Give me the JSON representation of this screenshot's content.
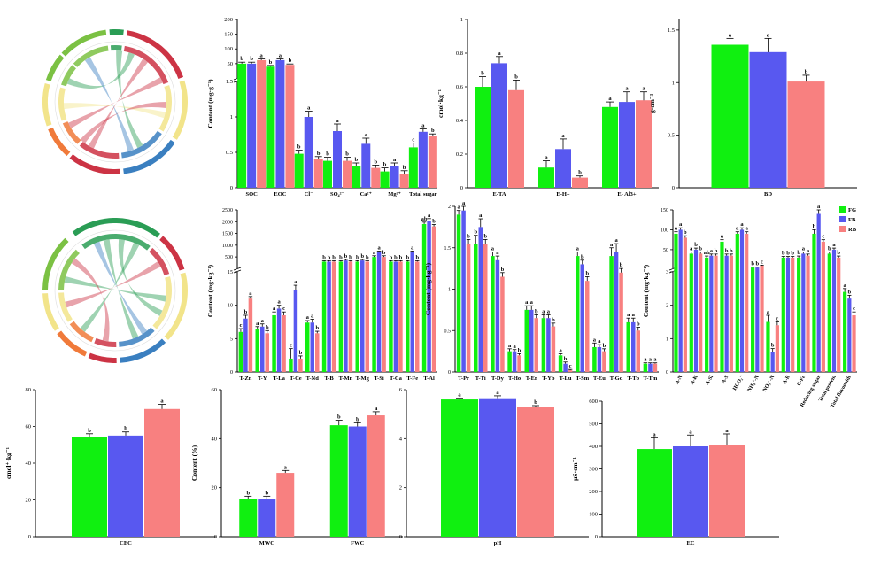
{
  "colors": {
    "FG": "#10f010",
    "FB": "#5858f0",
    "RB": "#f88080",
    "axis": "#000000",
    "chord_a": "#2a9d55",
    "chord_b": "#cc3344",
    "chord_c": "#3a7fc0",
    "chord_d": "#f2e48a",
    "chord_e": "#f07a3a",
    "chord_f": "#7bc143"
  },
  "legend": [
    "FG",
    "FB",
    "RB"
  ],
  "chord_diagrams": [
    {
      "type": "chord-diagram",
      "labels": []
    },
    {
      "type": "chord-diagram",
      "labels": []
    }
  ],
  "chart_data": [
    {
      "id": "p1",
      "type": "bar",
      "ylabel": "Content (mg·g⁻¹)",
      "categories": [
        "SOC",
        "EOC",
        "Cl⁻",
        "SO₄²⁻",
        "Ca²⁺",
        "Mg²⁺",
        "Total sugar"
      ],
      "segments": [
        {
          "range": [
            0,
            1.5
          ],
          "ticks": [
            0,
            0.5,
            1,
            1.5
          ]
        },
        {
          "range": [
            1.5,
            200
          ],
          "ticks": [
            50,
            100,
            150,
            200
          ]
        }
      ],
      "series": [
        {
          "name": "FG",
          "values": [
            50,
            40,
            0.48,
            0.38,
            0.3,
            0.23,
            0.57
          ],
          "err": [
            5,
            4,
            0.05,
            0.05,
            0.05,
            0.05,
            0.06
          ],
          "letters": [
            "b",
            "b",
            "b",
            "b",
            "b",
            "b",
            "c"
          ]
        },
        {
          "name": "FB",
          "values": [
            50,
            62,
            1.0,
            0.8,
            0.62,
            0.3,
            0.79
          ],
          "err": [
            5,
            4,
            0.08,
            0.1,
            0.08,
            0.05,
            0.04
          ],
          "letters": [
            "b",
            "a",
            "a",
            "a",
            "a",
            "a",
            "a"
          ]
        },
        {
          "name": "RB",
          "values": [
            62,
            46,
            0.4,
            0.38,
            0.28,
            0.2,
            0.73
          ],
          "err": [
            4,
            3,
            0.04,
            0.05,
            0.04,
            0.04,
            0.03
          ],
          "letters": [
            "a",
            "b",
            "b",
            "b",
            "b",
            "b",
            "b"
          ]
        }
      ]
    },
    {
      "id": "p2",
      "type": "bar",
      "ylabel": "cmol·kg⁻¹",
      "categories": [
        "E-TA",
        "E-H+",
        "E- Al3+"
      ],
      "segments": [
        {
          "range": [
            0,
            1.0
          ],
          "ticks": [
            0,
            0.2,
            0.4,
            0.6,
            0.8,
            1.0
          ]
        }
      ],
      "series": [
        {
          "name": "FG",
          "values": [
            0.6,
            0.12,
            0.48
          ],
          "err": [
            0.06,
            0.04,
            0.03
          ],
          "letters": [
            "b",
            "a",
            "a"
          ]
        },
        {
          "name": "FB",
          "values": [
            0.74,
            0.23,
            0.51
          ],
          "err": [
            0.04,
            0.06,
            0.06
          ],
          "letters": [
            "a",
            "a",
            "a"
          ]
        },
        {
          "name": "RB",
          "values": [
            0.58,
            0.06,
            0.52
          ],
          "err": [
            0.06,
            0.01,
            0.05
          ],
          "letters": [
            "b",
            "b",
            "a"
          ]
        }
      ]
    },
    {
      "id": "p3",
      "type": "bar",
      "ylabel": "g·cm⁻³",
      "categories": [
        "BD"
      ],
      "segments": [
        {
          "range": [
            0,
            1.6
          ],
          "ticks": [
            0,
            0.5,
            1.0,
            1.5
          ]
        }
      ],
      "series": [
        {
          "name": "FG",
          "values": [
            1.36
          ],
          "err": [
            0.06
          ],
          "letters": [
            "a"
          ]
        },
        {
          "name": "FB",
          "values": [
            1.29
          ],
          "err": [
            0.13
          ],
          "letters": [
            "a"
          ]
        },
        {
          "name": "RB",
          "values": [
            1.01
          ],
          "err": [
            0.06
          ],
          "letters": [
            "b"
          ]
        }
      ]
    },
    {
      "id": "p4",
      "type": "bar",
      "ylabel": "Content (mg·kg⁻¹)",
      "categories": [
        "T-Zn",
        "T-Y",
        "T-La",
        "T-Ce",
        "T-Nd",
        "T-B",
        "T-Mn",
        "T-Mg",
        "T-Si",
        "T-Ca",
        "T-Fe",
        "T-Al"
      ],
      "segments": [
        {
          "range": [
            0,
            15
          ],
          "ticks": [
            0,
            5,
            10,
            15
          ]
        },
        {
          "range": [
            15,
            2500
          ],
          "ticks": [
            500,
            1000,
            1500,
            2000,
            2500
          ]
        }
      ],
      "series": [
        {
          "name": "FG",
          "values": [
            6,
            6.5,
            8.5,
            2,
            7.4,
            300,
            300,
            300,
            500,
            300,
            300,
            1900
          ],
          "err": [
            0.5,
            0.3,
            0.5,
            1.5,
            0.3,
            40,
            40,
            40,
            50,
            40,
            40,
            80
          ],
          "letters": [
            "c",
            "a",
            "a",
            "c",
            "a",
            "b",
            "b",
            "b",
            "a",
            "b",
            "b",
            "ab"
          ]
        },
        {
          "name": "FB",
          "values": [
            8,
            6.8,
            9.5,
            12.3,
            7.4,
            300,
            350,
            350,
            700,
            300,
            700,
            2050
          ],
          "err": [
            0.5,
            0.4,
            0.5,
            0.7,
            0.5,
            40,
            40,
            40,
            50,
            40,
            50,
            80
          ],
          "letters": [
            "b",
            "a",
            "a",
            "a",
            "a",
            "b",
            "b",
            "b",
            "a",
            "b",
            "a",
            "a"
          ]
        },
        {
          "name": "RB",
          "values": [
            11,
            5.8,
            8.5,
            2,
            5.8,
            300,
            300,
            300,
            500,
            300,
            300,
            1800
          ],
          "err": [
            0.3,
            0.4,
            0.5,
            0.4,
            0.3,
            40,
            40,
            40,
            50,
            40,
            40,
            80
          ],
          "letters": [
            "a",
            "b",
            "c",
            "b",
            "b",
            "b",
            "b",
            "b",
            "b",
            "b",
            "b",
            "b"
          ]
        }
      ]
    },
    {
      "id": "p5",
      "type": "bar",
      "ylabel": "Content (mg·kg⁻¹)",
      "categories": [
        "T-Pr",
        "T-Ti",
        "T-Dy",
        "T-Ho",
        "T-Er",
        "T-Yb",
        "T-Lu",
        "T-Sm",
        "T-Eu",
        "T-Gd",
        "T-Tb",
        "T-Tm"
      ],
      "segments": [
        {
          "range": [
            0,
            2.0
          ],
          "ticks": [
            0,
            0.5,
            1.0,
            1.5,
            2.0
          ]
        }
      ],
      "series": [
        {
          "name": "FG",
          "values": [
            1.9,
            1.55,
            1.4,
            0.25,
            0.75,
            0.65,
            0.2,
            1.4,
            0.3,
            1.4,
            0.6,
            0.1
          ],
          "err": [
            0.05,
            0.1,
            0.05,
            0.03,
            0.05,
            0.04,
            0.02,
            0.05,
            0.05,
            0.1,
            0.05,
            0.01
          ],
          "letters": [
            "a",
            "b",
            "a",
            "a",
            "a",
            "a",
            "a",
            "a",
            "a",
            "a",
            "a",
            "a"
          ]
        },
        {
          "name": "FB",
          "values": [
            1.95,
            1.75,
            1.35,
            0.25,
            0.75,
            0.65,
            0.1,
            1.3,
            0.3,
            1.45,
            0.6,
            0.1
          ],
          "err": [
            0.05,
            0.1,
            0.05,
            0.02,
            0.05,
            0.04,
            0.02,
            0.05,
            0.03,
            0.1,
            0.05,
            0.01
          ],
          "letters": [
            "a",
            "a",
            "a",
            "a",
            "a",
            "a",
            "b",
            "b",
            "a",
            "a",
            "a",
            "a"
          ]
        },
        {
          "name": "RB",
          "values": [
            1.55,
            1.55,
            1.15,
            0.2,
            0.65,
            0.55,
            0.02,
            1.1,
            0.25,
            1.2,
            0.5,
            0.1
          ],
          "err": [
            0.05,
            0.05,
            0.05,
            0.02,
            0.04,
            0.04,
            0.01,
            0.05,
            0.03,
            0.05,
            0.04,
            0.01
          ],
          "letters": [
            "b",
            "b",
            "b",
            "b",
            "b",
            "b",
            "c",
            "b",
            "b",
            "b",
            "b",
            "a"
          ]
        }
      ]
    },
    {
      "id": "p6",
      "type": "bar",
      "ylabel": "Content (mg·kg⁻¹)",
      "categories": [
        "A-N",
        "A-K",
        "A-Si",
        "A-S",
        "HCO₃⁻",
        "NH₄⁺-N",
        "NO₃⁻-N",
        "A-B",
        "C-Fe",
        "Reducing sugar",
        "Total protein",
        "Total flavonoids"
      ],
      "segments": [
        {
          "range": [
            0,
            3
          ],
          "ticks": [
            0,
            1,
            2,
            3
          ]
        },
        {
          "range": [
            3,
            150
          ],
          "ticks": [
            50,
            100,
            150
          ]
        }
      ],
      "series": [
        {
          "name": "FG",
          "values": [
            90,
            40,
            30,
            70,
            90,
            5,
            1.5,
            30,
            30,
            90,
            40,
            2.4
          ],
          "err": [
            5,
            4,
            4,
            5,
            5,
            1,
            0.2,
            3,
            4,
            10,
            4,
            0.1
          ],
          "letters": [
            "a",
            "a",
            "ab",
            "a",
            "a",
            "b",
            "a",
            "b",
            "b",
            "b",
            "b",
            "a"
          ]
        },
        {
          "name": "FB",
          "values": [
            100,
            50,
            35,
            35,
            100,
            5,
            0.6,
            30,
            40,
            140,
            50,
            2.2
          ],
          "err": [
            5,
            4,
            4,
            4,
            5,
            1,
            0.1,
            3,
            4,
            10,
            4,
            0.1
          ],
          "letters": [
            "a",
            "b",
            "a",
            "b",
            "a",
            "b",
            "b",
            "b",
            "a",
            "a",
            "a",
            "b"
          ]
        },
        {
          "name": "RB",
          "values": [
            80,
            40,
            35,
            35,
            90,
            10,
            1.4,
            30,
            35,
            70,
            30,
            1.7
          ],
          "err": [
            5,
            4,
            4,
            4,
            5,
            1,
            0.1,
            3,
            4,
            5,
            4,
            0.1
          ],
          "letters": [
            "b",
            "b",
            "b",
            "b",
            "a",
            "c",
            "c",
            "b",
            "a",
            "c",
            "b",
            "c"
          ]
        }
      ]
    },
    {
      "id": "p7",
      "type": "bar",
      "ylabel": "cmol⁺·kg⁻¹",
      "categories": [
        "CEC"
      ],
      "segments": [
        {
          "range": [
            0,
            80
          ],
          "ticks": [
            0,
            20,
            40,
            60,
            80
          ]
        }
      ],
      "series": [
        {
          "name": "FG",
          "values": [
            54
          ],
          "err": [
            2
          ],
          "letters": [
            "b"
          ]
        },
        {
          "name": "FB",
          "values": [
            55
          ],
          "err": [
            2
          ],
          "letters": [
            "b"
          ]
        },
        {
          "name": "RB",
          "values": [
            69.5
          ],
          "err": [
            2.5
          ],
          "letters": [
            "a"
          ]
        }
      ]
    },
    {
      "id": "p8",
      "type": "bar",
      "ylabel": "Content (%)",
      "categories": [
        "MWC",
        "FWC"
      ],
      "segments": [
        {
          "range": [
            0,
            60
          ],
          "ticks": [
            0,
            20,
            40,
            60
          ]
        }
      ],
      "series": [
        {
          "name": "FG",
          "values": [
            15.5,
            45.5
          ],
          "err": [
            1,
            2
          ],
          "letters": [
            "b",
            "b"
          ]
        },
        {
          "name": "FB",
          "values": [
            15.5,
            45
          ],
          "err": [
            1,
            1.5
          ],
          "letters": [
            "b",
            "b"
          ]
        },
        {
          "name": "RB",
          "values": [
            26,
            49.5
          ],
          "err": [
            1,
            1.5
          ],
          "letters": [
            "a",
            "a"
          ]
        }
      ]
    },
    {
      "id": "p9",
      "type": "bar",
      "ylabel": "",
      "categories": [
        "pH"
      ],
      "segments": [
        {
          "range": [
            0,
            6
          ],
          "ticks": [
            0,
            2,
            4,
            6
          ]
        }
      ],
      "series": [
        {
          "name": "FG",
          "values": [
            5.6
          ],
          "err": [
            0.05
          ],
          "letters": [
            "a"
          ]
        },
        {
          "name": "FB",
          "values": [
            5.65
          ],
          "err": [
            0.1
          ],
          "letters": [
            "a"
          ]
        },
        {
          "name": "RB",
          "values": [
            5.3
          ],
          "err": [
            0.05
          ],
          "letters": [
            "b"
          ]
        }
      ]
    },
    {
      "id": "p10",
      "type": "bar",
      "ylabel": "μS·cm⁻¹",
      "categories": [
        "EC"
      ],
      "segments": [
        {
          "range": [
            0,
            600
          ],
          "ticks": [
            0,
            100,
            200,
            300,
            400,
            500,
            600
          ]
        }
      ],
      "series": [
        {
          "name": "FG",
          "values": [
            388
          ],
          "err": [
            50
          ],
          "letters": [
            "a"
          ]
        },
        {
          "name": "FB",
          "values": [
            400
          ],
          "err": [
            50
          ],
          "letters": [
            "a"
          ]
        },
        {
          "name": "RB",
          "values": [
            405
          ],
          "err": [
            50
          ],
          "letters": [
            "a"
          ]
        }
      ]
    }
  ]
}
